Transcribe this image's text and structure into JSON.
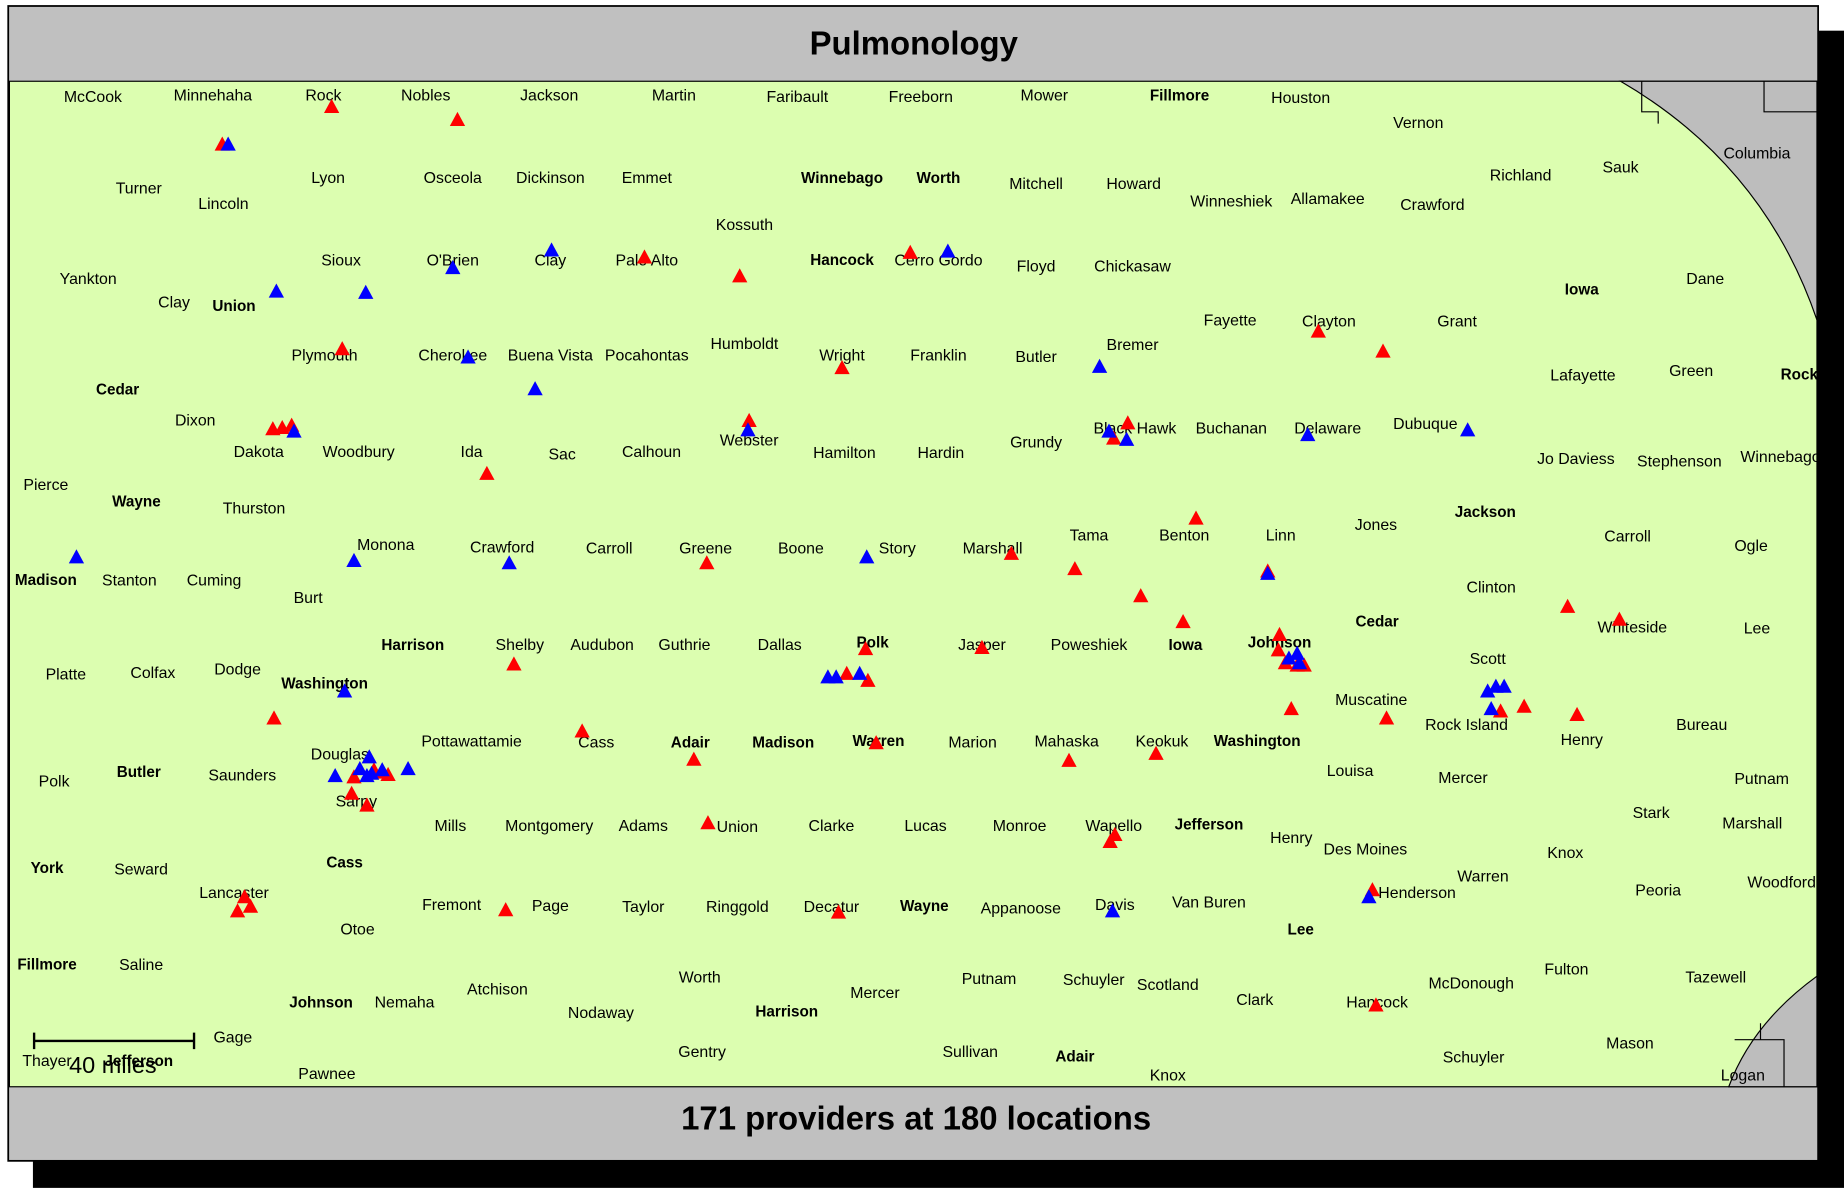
{
  "header": {
    "title": "Pulmonology"
  },
  "footer": {
    "text": "171 providers at 180 locations"
  },
  "scale": {
    "label": "40 miles"
  },
  "labels": [
    "McCook",
    "Minnehaha",
    "Rock",
    "Nobles",
    "Jackson",
    "Martin",
    "Faribault",
    "Freeborn",
    "Mower",
    "Fillmore",
    "Houston",
    "Vernon",
    "Columbia",
    "Turner",
    "Lincoln",
    "Lyon",
    "Osceola",
    "Dickinson",
    "Emmet",
    "Winnebago",
    "Worth",
    "Mitchell",
    "Howard",
    "Winneshiek",
    "Allamakee",
    "Crawford",
    "Richland",
    "Sauk",
    "Kossuth",
    "Yankton",
    "Sioux",
    "O'Brien",
    "Clay",
    "Palo Alto",
    "Hancock",
    "Cerro Gordo",
    "Floyd",
    "Chickasaw",
    "Dane",
    "Clay",
    "Union",
    "Iowa",
    "Fayette",
    "Clayton",
    "Grant",
    "Humboldt",
    "Bremer",
    "Plymouth",
    "Cherokee",
    "Buena Vista",
    "Pocahontas",
    "Wright",
    "Franklin",
    "Butler",
    "Lafayette",
    "Green",
    "Rock",
    "Cedar",
    "Dixon",
    "Black Hawk",
    "Buchanan",
    "Delaware",
    "Dubuque",
    "Webster",
    "Dakota",
    "Woodbury",
    "Ida",
    "Sac",
    "Calhoun",
    "Hamilton",
    "Hardin",
    "Grundy",
    "Jo Daviess",
    "Stephenson",
    "Winnebago",
    "Pierce",
    "Wayne",
    "Thurston",
    "Jackson",
    "Jones",
    "Tama",
    "Benton",
    "Linn",
    "Carroll",
    "Monona",
    "Crawford",
    "Carroll",
    "Greene",
    "Boone",
    "Story",
    "Marshall",
    "Ogle",
    "Madison",
    "Stanton",
    "Cuming",
    "Clinton",
    "Burt",
    "Cedar",
    "Whiteside",
    "Lee",
    "Harrison",
    "Shelby",
    "Audubon",
    "Guthrie",
    "Dallas",
    "Polk",
    "Jasper",
    "Poweshiek",
    "Iowa",
    "Johnson",
    "Scott",
    "Platte",
    "Colfax",
    "Dodge",
    "Washington",
    "Muscatine",
    "Rock Island",
    "Bureau",
    "Pottawattamie",
    "Cass",
    "Adair",
    "Madison",
    "Warren",
    "Marion",
    "Mahaska",
    "Keokuk",
    "Washington",
    "Henry",
    "Douglas",
    "Louisa",
    "Polk",
    "Butler",
    "Saunders",
    "Mercer",
    "Putnam",
    "Sarpy",
    "Stark",
    "Mills",
    "Montgomery",
    "Adams",
    "Union",
    "Clarke",
    "Lucas",
    "Monroe",
    "Wapello",
    "Jefferson",
    "Henry",
    "Marshall",
    "Des Moines",
    "Knox",
    "York",
    "Seward",
    "Cass",
    "Warren",
    "Woodford",
    "Lancaster",
    "Henderson",
    "Peoria",
    "Fremont",
    "Page",
    "Taylor",
    "Ringgold",
    "Decatur",
    "Wayne",
    "Appanoose",
    "Davis",
    "Van Buren",
    "Otoe",
    "Lee",
    "Fillmore",
    "Saline",
    "Fulton",
    "Tazewell",
    "Worth",
    "Putnam",
    "Schuyler",
    "Scotland",
    "McDonough",
    "Atchison",
    "Mercer",
    "Clark",
    "Johnson",
    "Nemaha",
    "Hancock",
    "Nodaway",
    "Harrison",
    "Gage",
    "Mason",
    "Gentry",
    "Sullivan",
    "Adair",
    "Schuyler",
    "Thayer",
    "Jefferson",
    "Pawnee",
    "Knox",
    "Logan"
  ]
}
